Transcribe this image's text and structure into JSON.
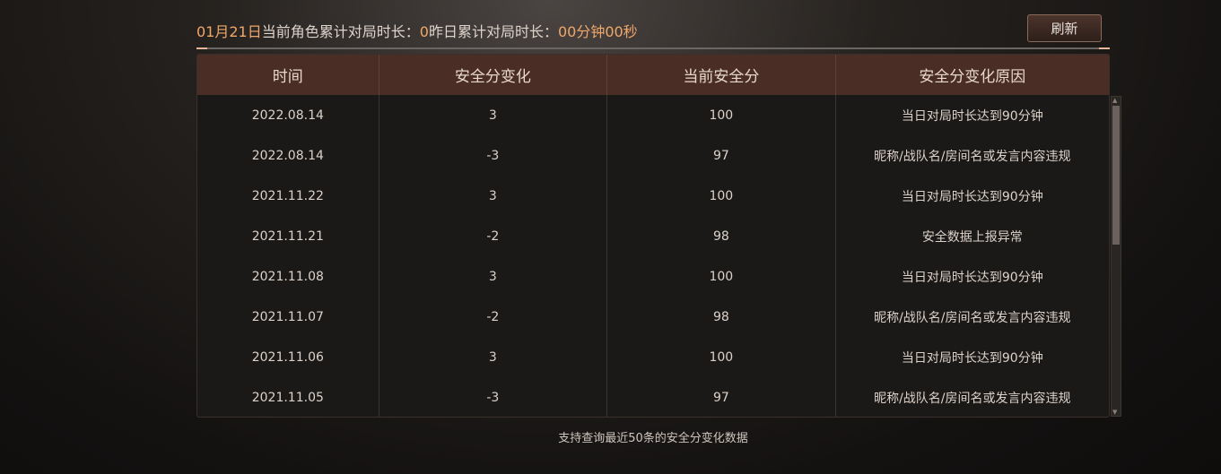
{
  "header": {
    "date": "01月21日",
    "label1": "当前角色累计对局时长：",
    "value1": "0",
    "label2": "昨日累计对局时长：",
    "value2": "00分钟00秒"
  },
  "refresh_label": "刷新",
  "table": {
    "columns": [
      "时间",
      "安全分变化",
      "当前安全分",
      "安全分变化原因"
    ],
    "rows": [
      [
        "2022.08.14",
        "3",
        "100",
        "当日对局时长达到90分钟"
      ],
      [
        "2022.08.14",
        "-3",
        "97",
        "昵称/战队名/房间名或发言内容违规"
      ],
      [
        "2021.11.22",
        "3",
        "100",
        "当日对局时长达到90分钟"
      ],
      [
        "2021.11.21",
        "-2",
        "98",
        "安全数据上报异常"
      ],
      [
        "2021.11.08",
        "3",
        "100",
        "当日对局时长达到90分钟"
      ],
      [
        "2021.11.07",
        "-2",
        "98",
        "昵称/战队名/房间名或发言内容违规"
      ],
      [
        "2021.11.06",
        "3",
        "100",
        "当日对局时长达到90分钟"
      ],
      [
        "2021.11.05",
        "-3",
        "97",
        "昵称/战队名/房间名或发言内容违规"
      ]
    ]
  },
  "footer": "支持查询最近50条的安全分变化数据"
}
